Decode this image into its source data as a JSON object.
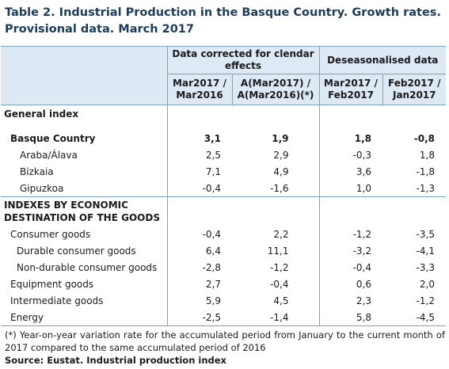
{
  "title": "Table 2. Industrial Production in the Basque Country. Growth rates. Provisional data. March 2017",
  "header": {
    "group1": "Data corrected for clendar effects",
    "group2": "Deseasonalised data",
    "col1": "Mar2017 / Mar2016",
    "col2": "A(Mar2017) / A(Mar2016)(*)",
    "col3": "Mar2017 / Feb2017",
    "col4": "Feb2017 / Jan2017"
  },
  "general_index_label": "General index",
  "general_rows": [
    {
      "label": "Basque Country",
      "v": [
        "3,1",
        "1,9",
        "1,8",
        "-0,8"
      ]
    },
    {
      "label": "Araba/Álava",
      "v": [
        "2,5",
        "2,9",
        "-0,3",
        "1,8"
      ]
    },
    {
      "label": "Bizkaia",
      "v": [
        "7,1",
        "4,9",
        "3,6",
        "-1,8"
      ]
    },
    {
      "label": "Gipuzkoa",
      "v": [
        "-0,4",
        "-1,6",
        "1,0",
        "-1,3"
      ]
    }
  ],
  "destination_label": "INDEXES BY ECONOMIC DESTINATION OF THE GOODS",
  "destination_rows": [
    {
      "label": "Consumer goods",
      "v": [
        "-0,4",
        "2,2",
        "-1,2",
        "-3,5"
      ]
    },
    {
      "label": "Durable consumer goods",
      "v": [
        "6,4",
        "11,1",
        "-3,2",
        "-4,1"
      ]
    },
    {
      "label": "Non-durable consumer goods",
      "v": [
        "-2,8",
        "-1,2",
        "-0,4",
        "-3,3"
      ]
    },
    {
      "label": "Equipment goods",
      "v": [
        "2,7",
        "-0,4",
        "0,6",
        "2,0"
      ]
    },
    {
      "label": "Intermediate goods",
      "v": [
        "5,9",
        "4,5",
        "2,3",
        "-1,2"
      ]
    },
    {
      "label": "Energy",
      "v": [
        "-2,5",
        "-1,4",
        "5,8",
        "-4,5"
      ]
    }
  ],
  "note": "(*) Year-on-year variation rate for the accumulated period from January to the current month of 2017 compared to the same accumulated period of 2016",
  "source": "Source: Eustat. Industrial production index"
}
